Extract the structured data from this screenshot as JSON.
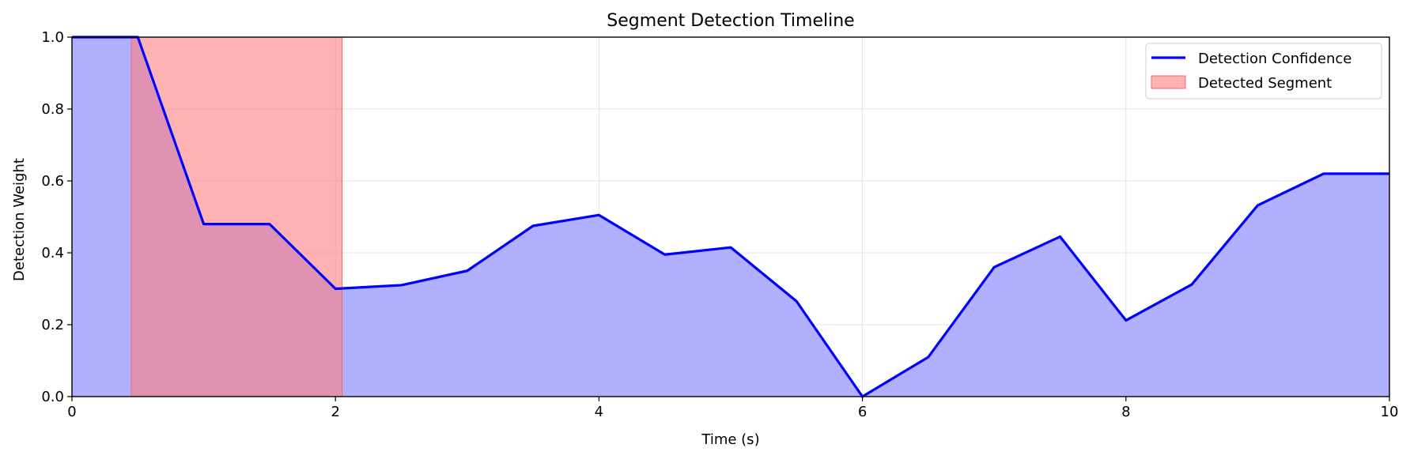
{
  "chart_data": {
    "type": "area",
    "title": "Segment Detection Timeline",
    "xlabel": "Time (s)",
    "ylabel": "Detection Weight",
    "xlim": [
      0,
      10
    ],
    "ylim": [
      0,
      1
    ],
    "xticks": [
      0,
      2,
      4,
      6,
      8,
      10
    ],
    "xtick_labels": [
      "0",
      "2",
      "4",
      "6",
      "8",
      "10"
    ],
    "yticks": [
      0.0,
      0.2,
      0.4,
      0.6,
      0.8,
      1.0
    ],
    "ytick_labels": [
      "0.0",
      "0.2",
      "0.4",
      "0.6",
      "0.8",
      "1.0"
    ],
    "grid": true,
    "legend_position": "top-right",
    "series": [
      {
        "name": "Detection Confidence",
        "color": "#0000ff",
        "fill_color": "#b0b0ff",
        "x": [
          0,
          0.5,
          1.0,
          1.5,
          2.0,
          2.5,
          3.0,
          3.5,
          4.0,
          4.5,
          5.0,
          5.5,
          6.0,
          6.5,
          7.0,
          7.5,
          8.0,
          8.5,
          9.0,
          9.5,
          10.0
        ],
        "y": [
          1.0,
          1.0,
          0.48,
          0.48,
          0.3,
          0.31,
          0.35,
          0.475,
          0.505,
          0.395,
          0.415,
          0.265,
          0.0,
          0.11,
          0.36,
          0.445,
          0.212,
          0.312,
          0.532,
          0.62,
          0.62
        ]
      }
    ],
    "segments": [
      {
        "name": "Detected Segment",
        "start": 0.45,
        "end": 2.05,
        "color": "#ff7f7f",
        "alpha": 0.6
      }
    ]
  }
}
